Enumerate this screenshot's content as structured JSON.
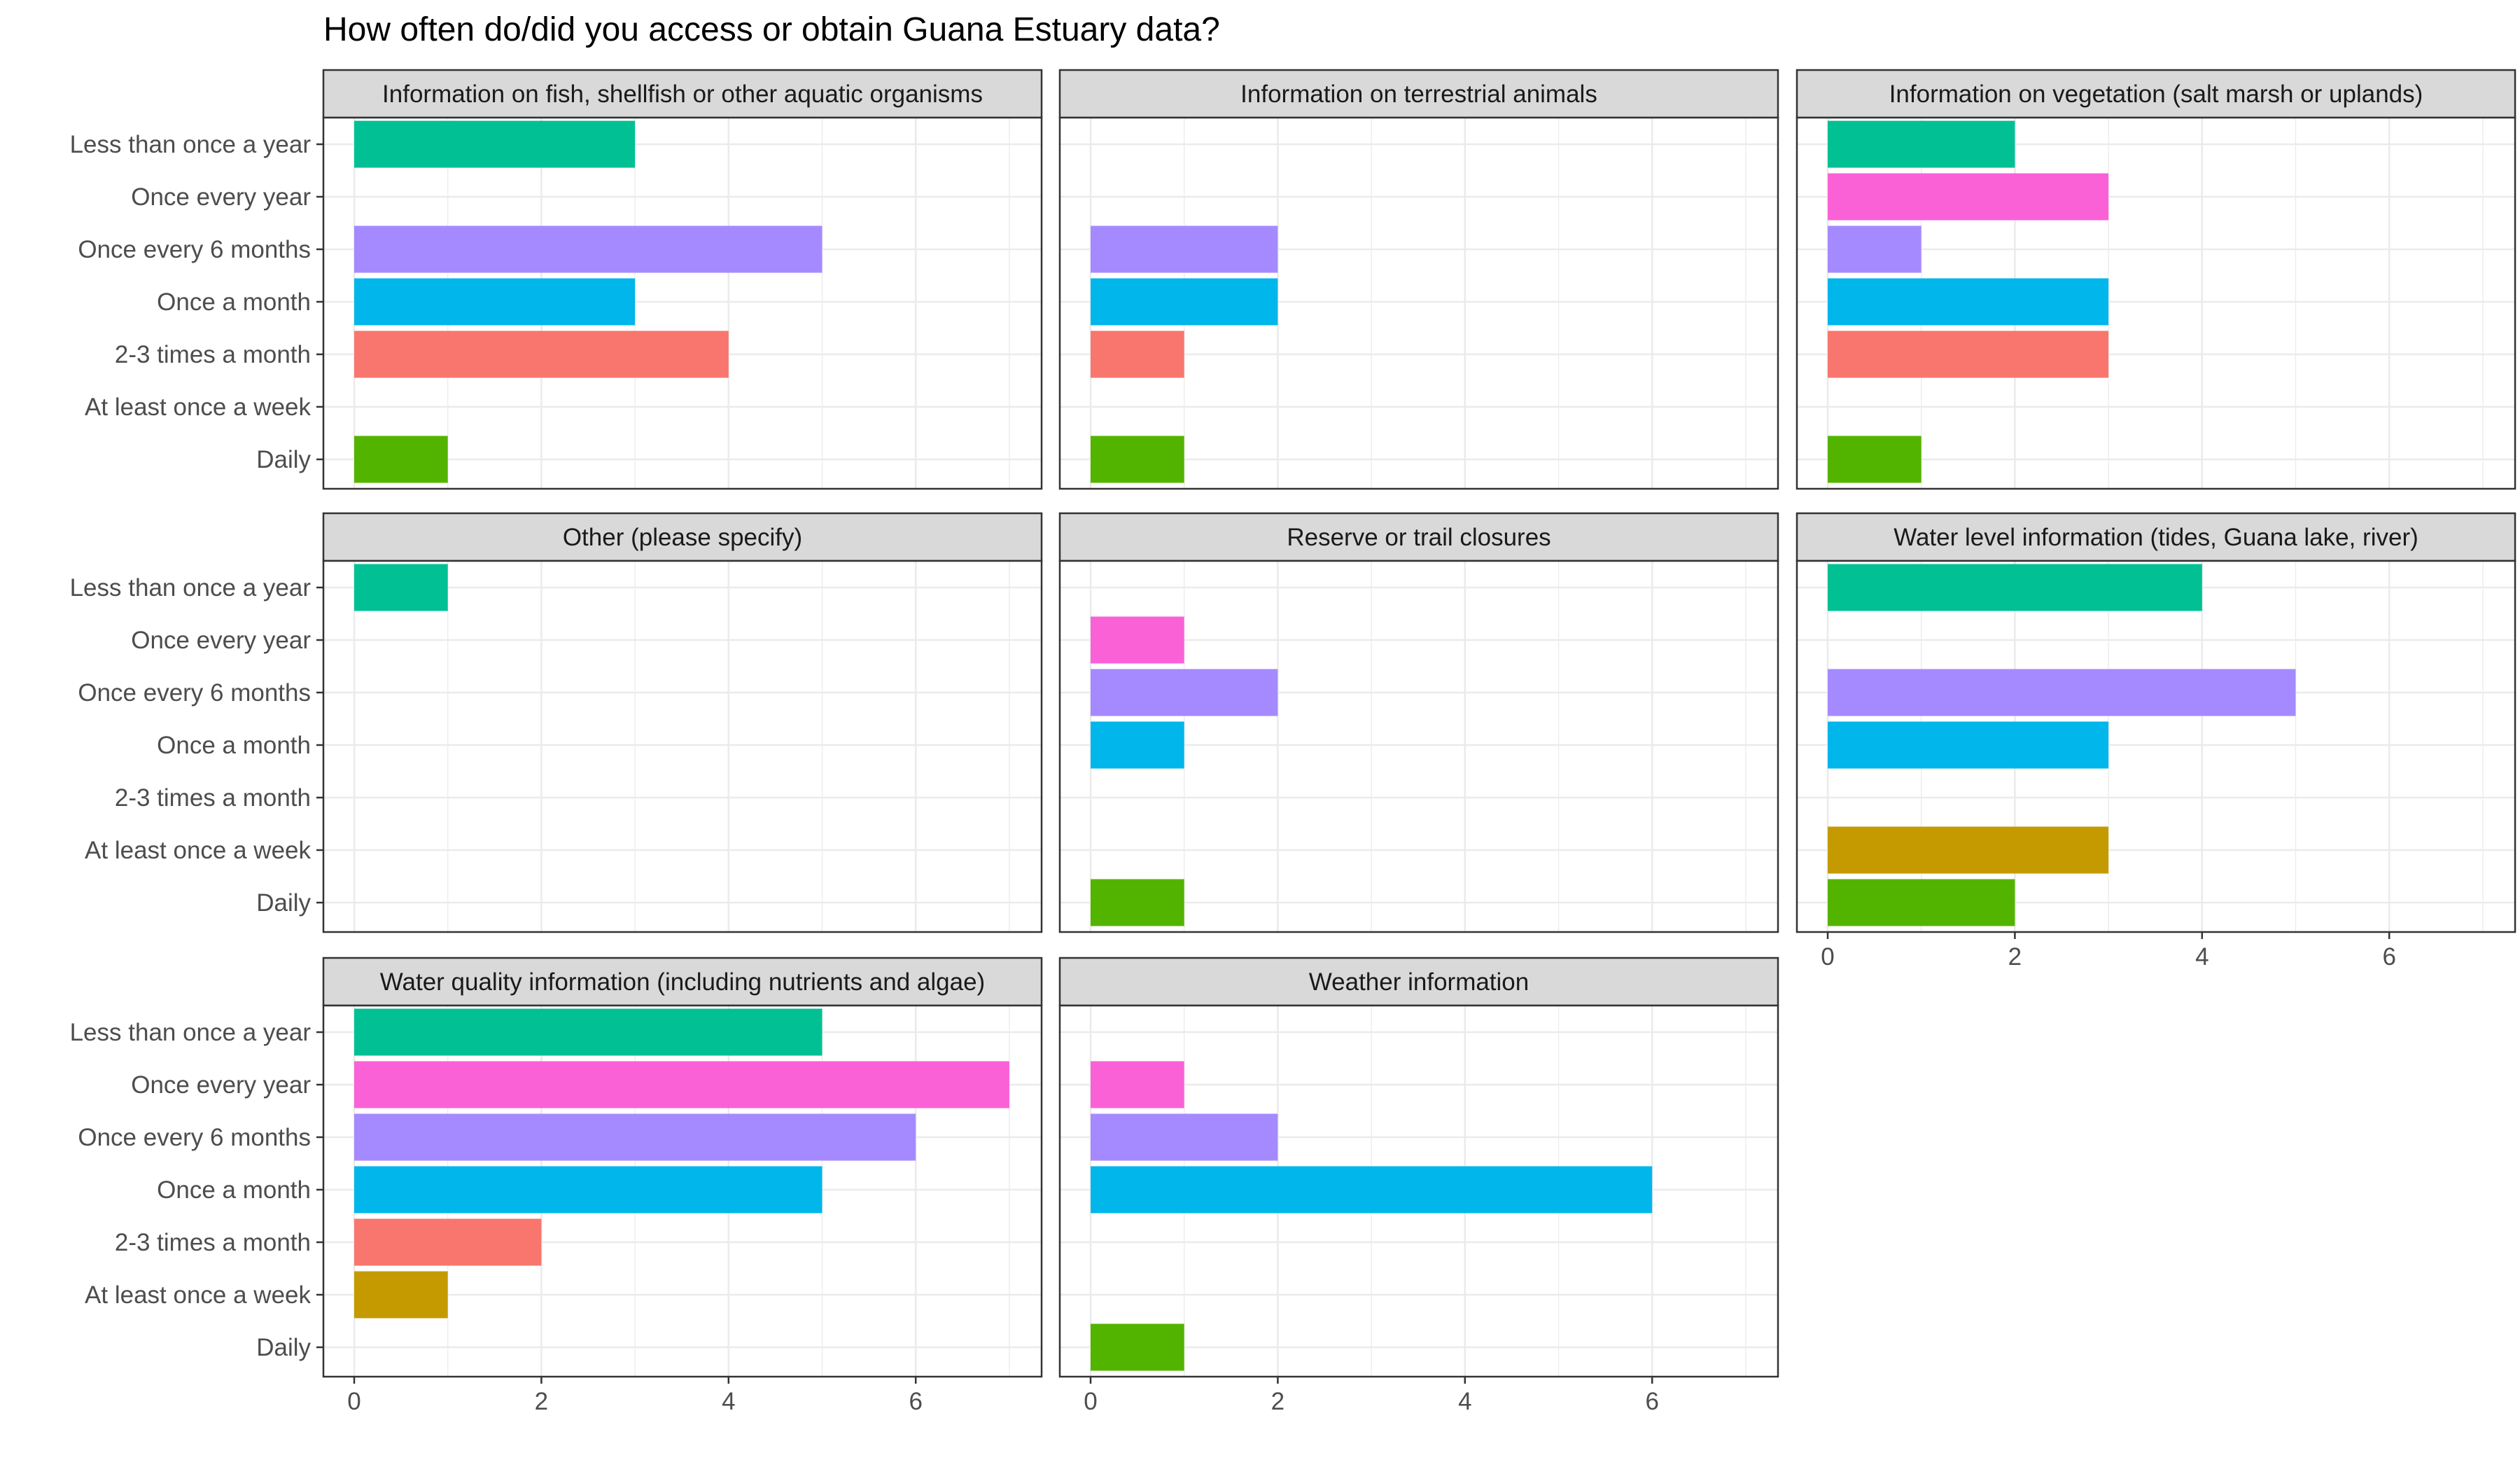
{
  "chart_data": {
    "type": "bar",
    "orientation": "horizontal",
    "facet_layout": "wrap, 3 columns",
    "title": "How often do/did you access or obtain Guana Estuary data?",
    "xlabel": "",
    "ylabel": "",
    "xlim": [
      0,
      7.3
    ],
    "x_ticks": [
      0,
      2,
      4,
      6
    ],
    "grid": true,
    "legend": "none",
    "categories": [
      "Less than once a year",
      "Once every year",
      "Once every 6 months",
      "Once a month",
      "2-3 times a month",
      "At least once a week",
      "Daily"
    ],
    "category_colors": [
      "#00C094",
      "#FB61D7",
      "#A58AFF",
      "#00B6EB",
      "#F8766D",
      "#C49A00",
      "#53B400"
    ],
    "panels": [
      {
        "name": "Information on fish, shellfish or other aquatic organisms",
        "values": [
          3,
          0,
          5,
          3,
          4,
          0,
          1
        ]
      },
      {
        "name": "Information on terrestrial animals",
        "values": [
          0,
          0,
          2,
          2,
          1,
          0,
          1
        ]
      },
      {
        "name": "Information on vegetation (salt marsh or uplands)",
        "values": [
          2,
          3,
          1,
          3,
          3,
          0,
          1
        ]
      },
      {
        "name": "Other (please specify)",
        "values": [
          1,
          0,
          0,
          0,
          0,
          0,
          0
        ]
      },
      {
        "name": "Reserve or trail closures",
        "values": [
          0,
          1,
          2,
          1,
          0,
          0,
          1
        ]
      },
      {
        "name": "Water level information (tides, Guana lake, river)",
        "values": [
          4,
          0,
          5,
          3,
          0,
          3,
          2
        ]
      },
      {
        "name": "Water quality information (including nutrients and algae)",
        "values": [
          5,
          7,
          6,
          5,
          2,
          1,
          0
        ]
      },
      {
        "name": "Weather information",
        "values": [
          0,
          1,
          2,
          6,
          0,
          0,
          1
        ]
      }
    ]
  }
}
